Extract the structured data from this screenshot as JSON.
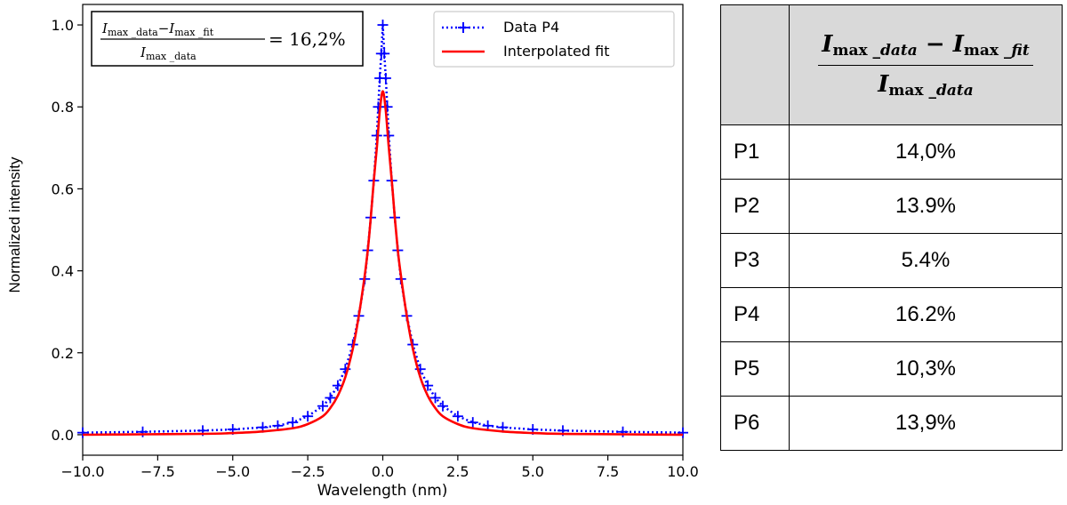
{
  "chart_data": {
    "type": "line",
    "xlabel": "Wavelength (nm)",
    "ylabel": "Normalized intensity",
    "xlim": [
      -10.0,
      10.0
    ],
    "ylim": [
      -0.05,
      1.05
    ],
    "xticks": [
      -10.0,
      -7.5,
      -5.0,
      -2.5,
      0.0,
      2.5,
      5.0,
      7.5,
      10.0
    ],
    "xtick_labels": [
      "−10.0",
      "−7.5",
      "−5.0",
      "−2.5",
      "0.0",
      "2.5",
      "5.0",
      "7.5",
      "10.0"
    ],
    "yticks": [
      0.0,
      0.2,
      0.4,
      0.6,
      0.8,
      1.0
    ],
    "ytick_labels": [
      "0.0",
      "0.2",
      "0.4",
      "0.6",
      "0.8",
      "1.0"
    ],
    "series": [
      {
        "name": "Data P4",
        "style": "dotted-plus",
        "color": "#0000ff",
        "x": [
          -10.0,
          -8.0,
          -6.0,
          -5.0,
          -4.0,
          -3.5,
          -3.0,
          -2.5,
          -2.0,
          -1.75,
          -1.5,
          -1.25,
          -1.0,
          -0.8,
          -0.6,
          -0.5,
          -0.4,
          -0.3,
          -0.2,
          -0.15,
          -0.1,
          -0.05,
          0.0,
          0.05,
          0.1,
          0.15,
          0.2,
          0.3,
          0.4,
          0.5,
          0.6,
          0.8,
          1.0,
          1.25,
          1.5,
          1.75,
          2.0,
          2.5,
          3.0,
          3.5,
          4.0,
          5.0,
          6.0,
          8.0,
          10.0
        ],
        "y": [
          0.005,
          0.007,
          0.01,
          0.013,
          0.018,
          0.022,
          0.03,
          0.045,
          0.07,
          0.09,
          0.12,
          0.16,
          0.22,
          0.29,
          0.38,
          0.45,
          0.53,
          0.62,
          0.73,
          0.8,
          0.87,
          0.93,
          1.0,
          0.93,
          0.87,
          0.8,
          0.73,
          0.62,
          0.53,
          0.45,
          0.38,
          0.29,
          0.22,
          0.16,
          0.12,
          0.09,
          0.07,
          0.045,
          0.03,
          0.022,
          0.018,
          0.013,
          0.01,
          0.007,
          0.005
        ]
      },
      {
        "name": "Interpolated fit",
        "style": "solid",
        "color": "#ff0000",
        "x": [
          -10.0,
          -8.0,
          -6.0,
          -5.0,
          -4.0,
          -3.0,
          -2.5,
          -2.0,
          -1.75,
          -1.5,
          -1.25,
          -1.0,
          -0.8,
          -0.6,
          -0.5,
          -0.4,
          -0.3,
          -0.2,
          -0.1,
          0.0,
          0.1,
          0.2,
          0.3,
          0.4,
          0.5,
          0.6,
          0.8,
          1.0,
          1.25,
          1.5,
          1.75,
          2.0,
          2.5,
          3.0,
          4.0,
          5.0,
          6.0,
          8.0,
          10.0
        ],
        "y": [
          0.0,
          0.001,
          0.002,
          0.004,
          0.008,
          0.016,
          0.026,
          0.045,
          0.065,
          0.095,
          0.14,
          0.21,
          0.29,
          0.39,
          0.45,
          0.53,
          0.62,
          0.7,
          0.79,
          0.838,
          0.79,
          0.7,
          0.62,
          0.53,
          0.45,
          0.39,
          0.29,
          0.21,
          0.14,
          0.095,
          0.065,
          0.045,
          0.026,
          0.016,
          0.008,
          0.004,
          0.002,
          0.001,
          0.0
        ]
      }
    ],
    "legend": {
      "placement": "top-right",
      "entries": [
        "Data P4",
        "Interpolated fit"
      ]
    },
    "annotation": {
      "num_left": "I",
      "num_left_sub": "max _data",
      "minus": "−",
      "num_right": "I",
      "num_right_sub": "max _fit",
      "den": "I",
      "den_sub": "max _data",
      "equals": "= 16,2%"
    }
  },
  "table": {
    "header": {
      "empty": "",
      "num_a": "I",
      "num_a_sub": "max _",
      "num_a_var": "data",
      "minus": "−",
      "num_b": "I",
      "num_b_sub": "max _",
      "num_b_var": "fit",
      "den": "I",
      "den_sub": "max _",
      "den_var": "data"
    },
    "rows": [
      {
        "label": "P1",
        "value": "14,0%"
      },
      {
        "label": "P2",
        "value": "13.9%"
      },
      {
        "label": "P3",
        "value": "5.4%"
      },
      {
        "label": "P4",
        "value": "16.2%"
      },
      {
        "label": "P5",
        "value": "10,3%"
      },
      {
        "label": "P6",
        "value": "13,9%"
      }
    ]
  }
}
